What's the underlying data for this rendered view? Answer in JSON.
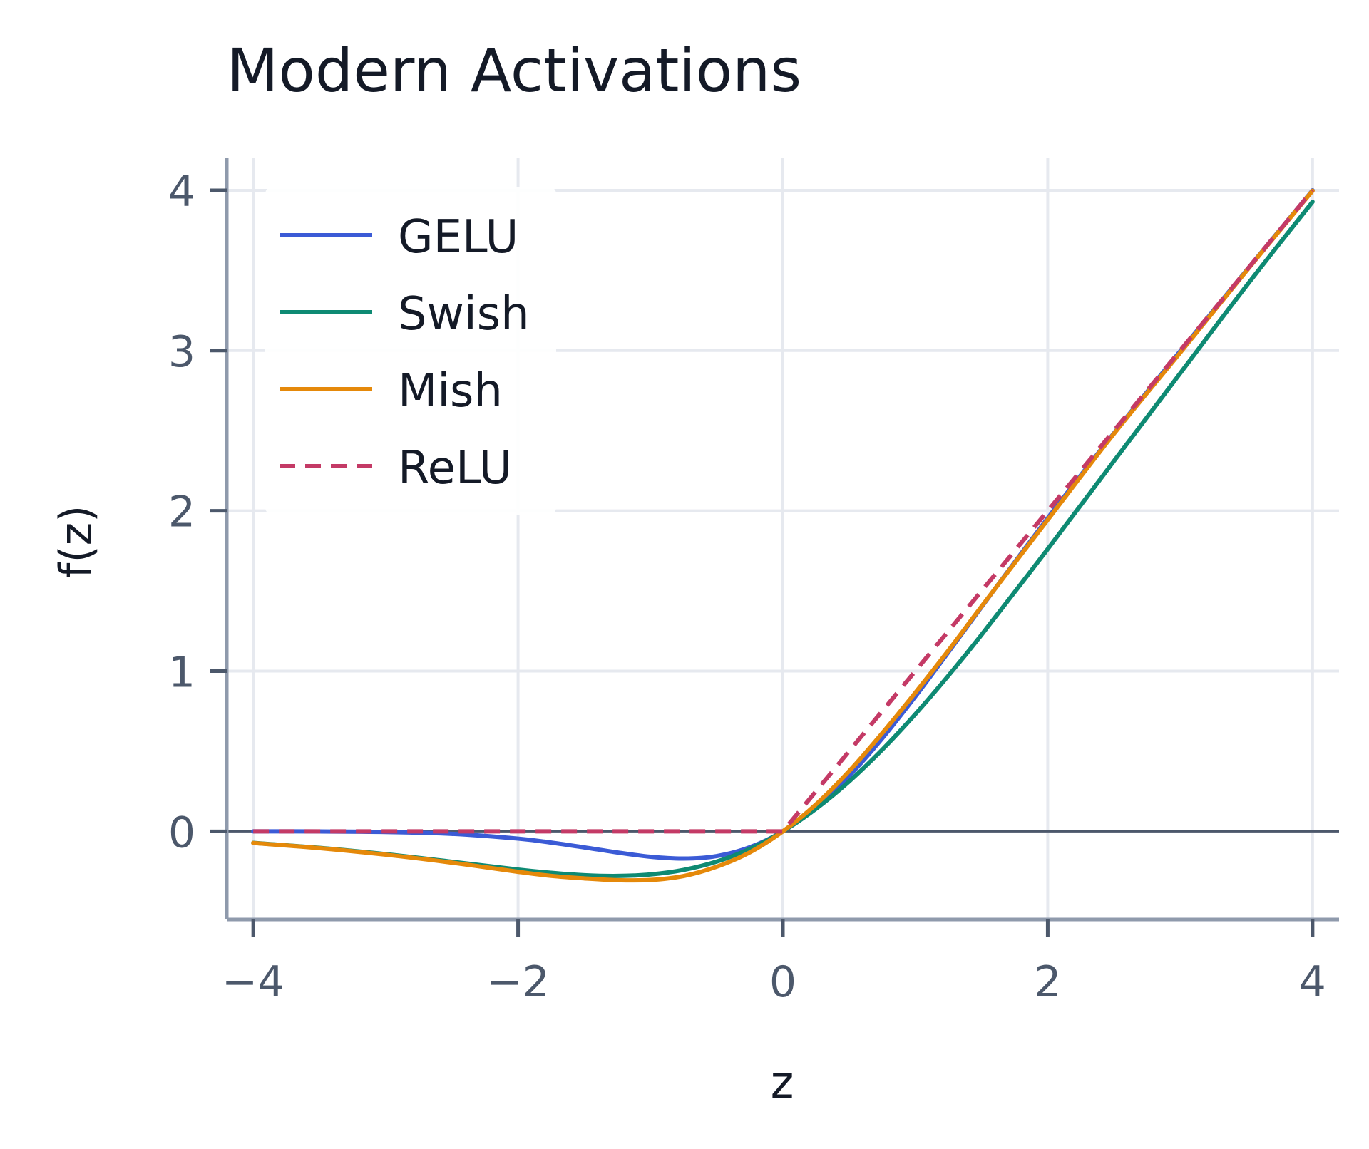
{
  "chart_data": {
    "type": "line",
    "title": "Modern Activations",
    "xlabel": "z",
    "ylabel": "f(z)",
    "xlim": [
      -4.2,
      4.2
    ],
    "ylim": [
      -0.55,
      4.2
    ],
    "xticks": [
      -4,
      -2,
      0,
      2,
      4
    ],
    "xtick_labels": [
      "−4",
      "−2",
      "0",
      "2",
      "4"
    ],
    "yticks": [
      0,
      1,
      2,
      3,
      4
    ],
    "ytick_labels": [
      "0",
      "1",
      "2",
      "3",
      "4"
    ],
    "grid": true,
    "zero_line": true,
    "legend_position": "top-left",
    "x": [
      -4,
      -3.5,
      -3,
      -2.5,
      -2,
      -1.75,
      -1.5,
      -1.25,
      -1,
      -0.75,
      -0.5,
      -0.25,
      0,
      0.25,
      0.5,
      0.75,
      1,
      1.25,
      1.5,
      2,
      2.5,
      3,
      3.5,
      4
    ],
    "series": [
      {
        "name": "GELU",
        "color": "#3b5bd6",
        "dash": "solid",
        "values": [
          -0.0001,
          -0.0008,
          -0.004,
          -0.0155,
          -0.0455,
          -0.0702,
          -0.1002,
          -0.132,
          -0.1587,
          -0.1699,
          -0.1543,
          -0.0996,
          0,
          0.1504,
          0.3457,
          0.5801,
          0.8413,
          1.118,
          1.3998,
          1.9545,
          2.4845,
          2.996,
          3.4992,
          3.9999
        ]
      },
      {
        "name": "Swish",
        "color": "#0e8a73",
        "dash": "solid",
        "values": [
          -0.0719,
          -0.1032,
          -0.1423,
          -0.1896,
          -0.2384,
          -0.2586,
          -0.2736,
          -0.2784,
          -0.2689,
          -0.2406,
          -0.1888,
          -0.1094,
          0,
          0.1406,
          0.3112,
          0.5094,
          0.7311,
          0.9716,
          1.2264,
          1.7616,
          2.3104,
          2.8577,
          3.4033,
          3.9281
        ]
      },
      {
        "name": "Mish",
        "color": "#e5890a",
        "dash": "solid",
        "values": [
          -0.0727,
          -0.1049,
          -0.1456,
          -0.1952,
          -0.2525,
          -0.2779,
          -0.2936,
          -0.3047,
          -0.3034,
          -0.2789,
          -0.2207,
          -0.1313,
          0,
          0.1679,
          0.3752,
          0.6122,
          0.8651,
          1.1284,
          1.4034,
          1.944,
          2.4809,
          2.9865,
          3.4962,
          3.9974
        ]
      },
      {
        "name": "ReLU",
        "color": "#c43a66",
        "dash": "dashed",
        "values": [
          0,
          0,
          0,
          0,
          0,
          0,
          0,
          0,
          0,
          0,
          0,
          0,
          0,
          0.25,
          0.5,
          0.75,
          1,
          1.25,
          1.5,
          2,
          2.5,
          3,
          3.5,
          4
        ]
      }
    ],
    "colors": {
      "grid": "#e6e9ef",
      "axis": "#8f9aac",
      "zero_line": "#4c586b",
      "tick_text": "#4c586b",
      "title_text": "#141a27"
    }
  }
}
